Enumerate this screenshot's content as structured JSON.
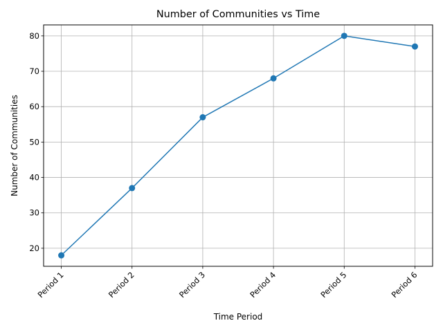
{
  "chart_data": {
    "type": "line",
    "title": "Number of Communities vs Time",
    "xlabel": "Time Period",
    "ylabel": "Number of Communities",
    "categories": [
      "Period 1",
      "Period 2",
      "Period 3",
      "Period 4",
      "Period 5",
      "Period 6"
    ],
    "series": [
      {
        "values": [
          18,
          37,
          57,
          68,
          80,
          77
        ],
        "color": "#1f77b4",
        "marker": "circle"
      }
    ],
    "ylim": [
      14.9,
      83.1
    ],
    "yticks": [
      20,
      30,
      40,
      50,
      60,
      70,
      80
    ],
    "grid": true,
    "x_tick_rotation": 45
  }
}
